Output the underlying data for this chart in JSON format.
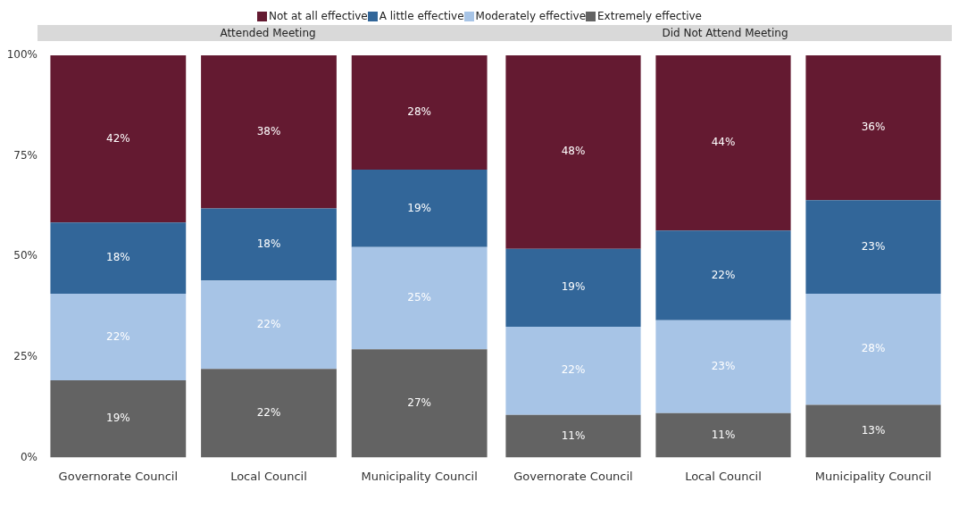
{
  "chart_data": [
    {
      "type": "bar",
      "title": "Attended Meeting",
      "categories": [
        "Governorate Council",
        "Local Council",
        "Municipality Council"
      ],
      "stacked": true,
      "legend": "top",
      "tick_labels": "xy",
      "ylim": [
        0,
        100
      ],
      "yticks": [
        {
          "value": 0,
          "label": "0%"
        },
        {
          "value": 25,
          "label": "25%"
        },
        {
          "value": 50,
          "label": "50%"
        },
        {
          "value": 75,
          "label": "75%"
        },
        {
          "value": 100,
          "label": "100%"
        }
      ],
      "series": [
        {
          "name": "Extremely effective",
          "color": "#636363",
          "values": [
            19.2,
            22.0,
            26.9
          ],
          "value_labels": [
            "19%",
            "22%",
            "27%"
          ]
        },
        {
          "name": "Moderately effective",
          "color": "#a7c4e6",
          "values": [
            21.5,
            22.0,
            25.4
          ],
          "value_labels": [
            "22%",
            "22%",
            "25%"
          ]
        },
        {
          "name": "A little effective",
          "color": "#326699",
          "values": [
            17.7,
            17.9,
            19.3
          ],
          "value_labels": [
            "18%",
            "18%",
            "19%"
          ]
        },
        {
          "name": "Not at all effective",
          "color": "#641a31",
          "values": [
            41.6,
            38.1,
            28.4
          ],
          "value_labels": [
            "42%",
            "38%",
            "28%"
          ]
        }
      ]
    },
    {
      "type": "bar",
      "title": "Did Not Attend Meeting",
      "categories": [
        "Governorate Council",
        "Local Council",
        "Municipality Council"
      ],
      "stacked": true,
      "tick_labels": "x",
      "ylim": [
        0,
        100
      ],
      "series": [
        {
          "color": "#636363",
          "values": [
            10.6,
            11.0,
            13.1
          ],
          "value_labels": [
            "11%",
            "11%",
            "13%"
          ]
        },
        {
          "color": "#a7c4e6",
          "values": [
            21.9,
            23.1,
            27.6
          ],
          "value_labels": [
            "22%",
            "23%",
            "28%"
          ]
        },
        {
          "color": "#326699",
          "values": [
            19.4,
            22.3,
            23.3
          ],
          "value_labels": [
            "19%",
            "22%",
            "23%"
          ]
        },
        {
          "color": "#641a31",
          "values": [
            48.1,
            43.6,
            36.0
          ],
          "value_labels": [
            "48%",
            "44%",
            "36%"
          ]
        }
      ]
    }
  ]
}
